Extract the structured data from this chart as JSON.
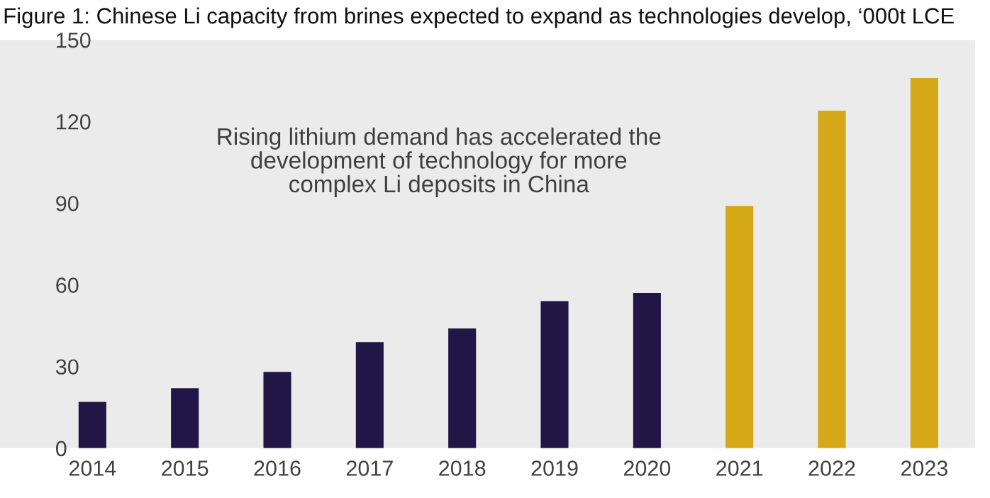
{
  "chart_data": {
    "type": "bar",
    "title": "Figure 1: Chinese Li capacity from brines expected to expand as technologies develop, ‘000t LCE",
    "categories": [
      "2014",
      "2015",
      "2016",
      "2017",
      "2018",
      "2019",
      "2020",
      "2021",
      "2022",
      "2023"
    ],
    "values": [
      17,
      22,
      28,
      39,
      44,
      54,
      57,
      89,
      124,
      136
    ],
    "colors": [
      "#201747",
      "#201747",
      "#201747",
      "#201747",
      "#201747",
      "#201747",
      "#201747",
      "#d4a817",
      "#d4a817",
      "#d4a817"
    ],
    "ylim": [
      0,
      150
    ],
    "yticks": [
      0,
      30,
      60,
      90,
      120,
      150
    ],
    "grid": false,
    "annotations": [
      "Rising lithium demand has accelerated the\ndevelopment of technology for more\ncomplex Li deposits in China"
    ]
  }
}
